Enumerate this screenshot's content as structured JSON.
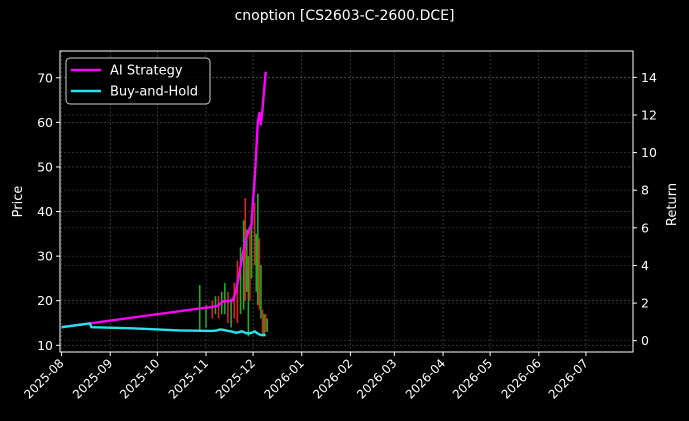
{
  "title": "cnoption [CS2603-C-2600.DCE]",
  "chart_data": {
    "type": "line",
    "title": "cnoption [CS2603-C-2600.DCE]",
    "xlabel": "",
    "ylabel": "Price",
    "y2label": "Return",
    "ylim": [
      8.5,
      76
    ],
    "y2lim": [
      -0.6,
      15.4
    ],
    "xlim": [
      "2025-07-31",
      "2026-07-31"
    ],
    "grid": true,
    "legend_position": "upper left",
    "x_ticks": [
      "2025-08",
      "2025-09",
      "2025-10",
      "2025-11",
      "2025-12",
      "2026-01",
      "2026-02",
      "2026-03",
      "2026-04",
      "2026-05",
      "2026-06",
      "2026-07"
    ],
    "y_ticks": [
      10,
      20,
      30,
      40,
      50,
      60,
      70
    ],
    "y2_ticks": [
      0,
      2,
      4,
      6,
      8,
      10,
      12,
      14
    ],
    "series": [
      {
        "name": "AI Strategy",
        "axis": "right",
        "color": "#ff00ff",
        "points": [
          [
            "2025-08-01",
            0.72
          ],
          [
            "2025-10-28",
            1.72
          ],
          [
            "2025-11-05",
            1.8
          ],
          [
            "2025-11-08",
            1.85
          ],
          [
            "2025-11-10",
            1.95
          ],
          [
            "2025-11-12",
            2.1
          ],
          [
            "2025-11-15",
            2.1
          ],
          [
            "2025-11-18",
            2.15
          ],
          [
            "2025-11-20",
            2.6
          ],
          [
            "2025-11-22",
            3.5
          ],
          [
            "2025-11-24",
            4.4
          ],
          [
            "2025-11-26",
            5.3
          ],
          [
            "2025-11-28",
            5.8
          ],
          [
            "2025-11-30",
            6.2
          ],
          [
            "2025-12-01",
            7.5
          ],
          [
            "2025-12-02",
            8.6
          ],
          [
            "2025-12-04",
            11.6
          ],
          [
            "2025-12-05",
            12.1
          ],
          [
            "2025-12-06",
            11.5
          ],
          [
            "2025-12-07",
            12.3
          ],
          [
            "2025-12-09",
            14.3
          ]
        ]
      },
      {
        "name": "Buy-and-Hold",
        "axis": "right",
        "color": "#22e5ee",
        "points": [
          [
            "2025-08-01",
            0.72
          ],
          [
            "2025-08-19",
            0.92
          ],
          [
            "2025-08-20",
            0.72
          ],
          [
            "2025-09-15",
            0.66
          ],
          [
            "2025-10-15",
            0.55
          ],
          [
            "2025-11-05",
            0.52
          ],
          [
            "2025-11-08",
            0.55
          ],
          [
            "2025-11-10",
            0.6
          ],
          [
            "2025-11-12",
            0.58
          ],
          [
            "2025-11-15",
            0.52
          ],
          [
            "2025-11-18",
            0.48
          ],
          [
            "2025-11-20",
            0.42
          ],
          [
            "2025-11-22",
            0.45
          ],
          [
            "2025-11-24",
            0.5
          ],
          [
            "2025-11-26",
            0.42
          ],
          [
            "2025-11-28",
            0.38
          ],
          [
            "2025-11-30",
            0.42
          ],
          [
            "2025-12-02",
            0.5
          ],
          [
            "2025-12-04",
            0.38
          ],
          [
            "2025-12-06",
            0.3
          ],
          [
            "2025-12-09",
            0.3
          ]
        ]
      }
    ],
    "candles": {
      "axis": "left",
      "up_color": "#22aa22",
      "down_color": "#dd2222",
      "bars": [
        [
          "2025-10-28",
          13,
          23.5,
          "up"
        ],
        [
          "2025-11-01",
          14,
          19,
          "up"
        ],
        [
          "2025-11-05",
          16,
          20,
          "down"
        ],
        [
          "2025-11-07",
          17,
          21,
          "up"
        ],
        [
          "2025-11-09",
          16,
          21,
          "down"
        ],
        [
          "2025-11-11",
          17,
          22,
          "up"
        ],
        [
          "2025-11-13",
          17,
          24,
          "up"
        ],
        [
          "2025-11-15",
          15,
          22,
          "down"
        ],
        [
          "2025-11-17",
          14,
          20.5,
          "up"
        ],
        [
          "2025-11-19",
          16,
          24,
          "down"
        ],
        [
          "2025-11-21",
          15,
          29,
          "down"
        ],
        [
          "2025-11-23",
          17,
          32,
          "up"
        ],
        [
          "2025-11-25",
          18,
          38,
          "up"
        ],
        [
          "2025-11-26",
          20,
          43,
          "down"
        ],
        [
          "2025-11-27",
          22,
          36,
          "up"
        ],
        [
          "2025-11-28",
          12,
          30,
          "up"
        ],
        [
          "2025-11-29",
          20,
          36,
          "down"
        ],
        [
          "2025-11-30",
          25,
          39,
          "up"
        ],
        [
          "2025-12-02",
          28,
          42,
          "down"
        ],
        [
          "2025-12-03",
          22,
          35,
          "up"
        ],
        [
          "2025-12-04",
          19,
          44,
          "up"
        ],
        [
          "2025-12-05",
          18,
          34,
          "down"
        ],
        [
          "2025-12-06",
          16,
          28,
          "up"
        ],
        [
          "2025-12-07",
          12,
          18,
          "down"
        ],
        [
          "2025-12-08",
          12,
          17,
          "up"
        ],
        [
          "2025-12-09",
          13,
          17,
          "down"
        ],
        [
          "2025-12-10",
          13,
          16,
          "up"
        ]
      ]
    }
  }
}
